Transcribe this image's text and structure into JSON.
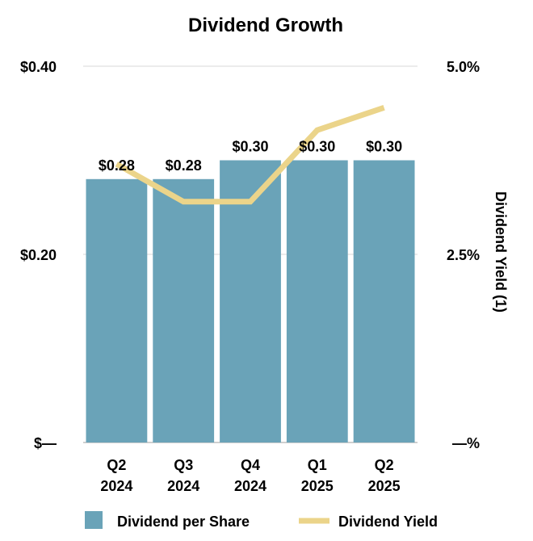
{
  "chart_data": {
    "type": "bar+line",
    "title": "Dividend Growth",
    "categories": [
      [
        "Q2",
        "2024"
      ],
      [
        "Q3",
        "2024"
      ],
      [
        "Q4",
        "2024"
      ],
      [
        "Q1",
        "2025"
      ],
      [
        "Q2",
        "2025"
      ]
    ],
    "series": [
      {
        "name": "Dividend per Share",
        "type": "bar",
        "axis": "left",
        "color": "#6aa3b8",
        "values": [
          0.28,
          0.28,
          0.3,
          0.3,
          0.3
        ],
        "labels": [
          "$0.28",
          "$0.28",
          "$0.30",
          "$0.30",
          "$0.30"
        ]
      },
      {
        "name": "Dividend Yield",
        "type": "line",
        "axis": "right",
        "color": "#ebd48a",
        "values": [
          3.7,
          3.2,
          3.2,
          4.15,
          4.45
        ]
      }
    ],
    "left_axis": {
      "min": 0,
      "max": 0.4,
      "ticks": [
        {
          "value": 0,
          "label": "$—"
        },
        {
          "value": 0.2,
          "label": "$0.20"
        },
        {
          "value": 0.4,
          "label": "$0.40"
        }
      ]
    },
    "right_axis": {
      "min": 0,
      "max": 5.0,
      "label": "Dividend Yield (1)",
      "ticks": [
        {
          "value": 0,
          "label": "—%"
        },
        {
          "value": 2.5,
          "label": "2.5%"
        },
        {
          "value": 5.0,
          "label": "5.0%"
        }
      ]
    },
    "grid": true,
    "legend_position": "bottom"
  }
}
